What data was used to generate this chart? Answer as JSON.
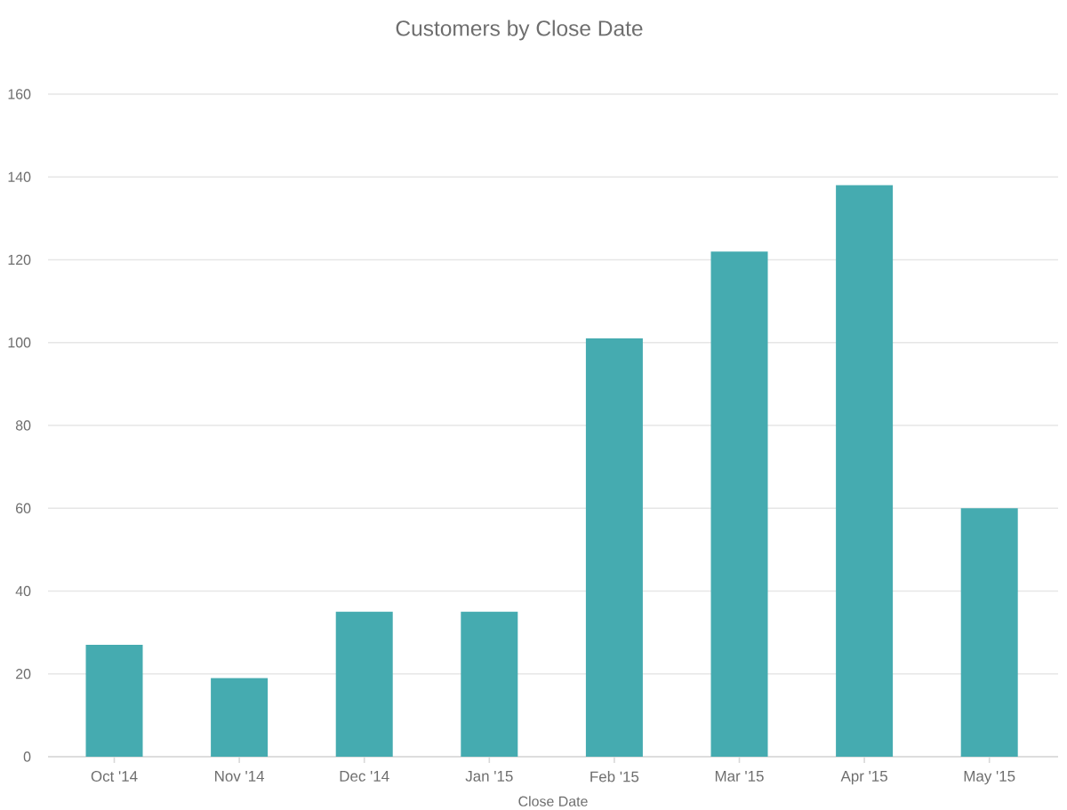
{
  "chart_data": {
    "type": "bar",
    "title": "Customers by Close Date",
    "xlabel": "Close Date",
    "categories": [
      "Oct '14",
      "Nov '14",
      "Dec '14",
      "Jan '15",
      "Feb '15",
      "Mar '15",
      "Apr '15",
      "May '15"
    ],
    "values": [
      27,
      19,
      35,
      35,
      101,
      122,
      138,
      60
    ],
    "color": "#45abb0",
    "ylim": [
      0,
      160
    ],
    "yticks": [
      0,
      20,
      40,
      60,
      80,
      100,
      120,
      140,
      160
    ],
    "grid": "y"
  }
}
